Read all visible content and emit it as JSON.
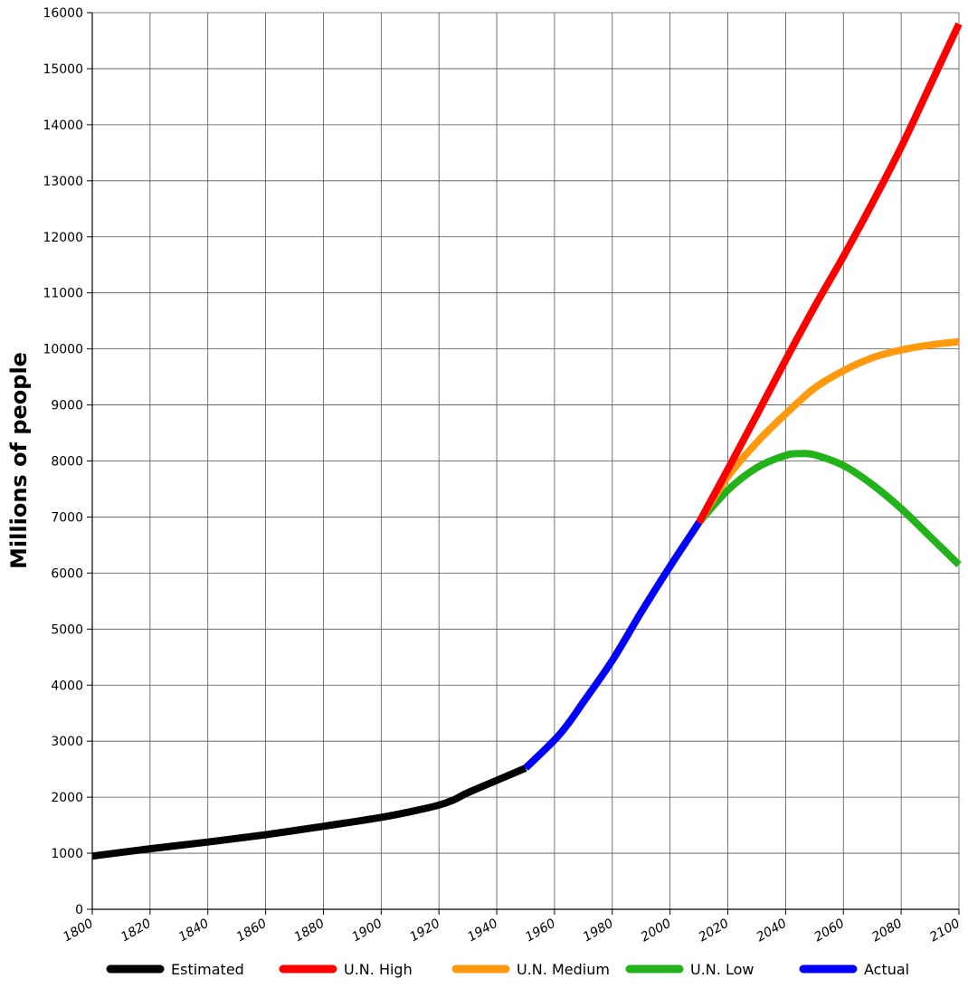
{
  "chart_data": {
    "type": "line",
    "title": "",
    "xlabel": "",
    "ylabel": "Millions of people",
    "xlim": [
      1800,
      2100
    ],
    "ylim": [
      0,
      16000
    ],
    "x_ticks": [
      "1800",
      "1820",
      "1840",
      "1860",
      "1880",
      "1900",
      "1920",
      "1940",
      "1960",
      "1980",
      "2000",
      "2020",
      "2040",
      "2060",
      "2080",
      "2100"
    ],
    "y_ticks": [
      "0",
      "1000",
      "2000",
      "3000",
      "4000",
      "5000",
      "6000",
      "7000",
      "8000",
      "9000",
      "10000",
      "11000",
      "12000",
      "13000",
      "14000",
      "15000",
      "16000"
    ],
    "grid": true,
    "legend_position": "bottom",
    "series": [
      {
        "name": "Estimated",
        "color": "#000000",
        "x": [
          1800,
          1820,
          1840,
          1860,
          1880,
          1900,
          1910,
          1920,
          1925,
          1930,
          1940,
          1950
        ],
        "values": [
          950,
          1080,
          1200,
          1330,
          1480,
          1640,
          1740,
          1860,
          1950,
          2080,
          2300,
          2520
        ]
      },
      {
        "name": "U.N. High",
        "color": "#ff0000",
        "x": [
          2010,
          2020,
          2030,
          2040,
          2050,
          2060,
          2070,
          2080,
          2090,
          2100
        ],
        "values": [
          6900,
          7850,
          8820,
          9800,
          10750,
          11650,
          12600,
          13600,
          14700,
          15800
        ]
      },
      {
        "name": "U.N. Medium",
        "color": "#ff9a0f",
        "x": [
          2010,
          2020,
          2030,
          2040,
          2050,
          2060,
          2070,
          2080,
          2090,
          2100
        ],
        "values": [
          6900,
          7720,
          8330,
          8840,
          9300,
          9610,
          9840,
          9980,
          10070,
          10130
        ]
      },
      {
        "name": "U.N. Low",
        "color": "#22b21a",
        "x": [
          2010,
          2020,
          2030,
          2040,
          2045,
          2050,
          2060,
          2070,
          2080,
          2090,
          2100
        ],
        "values": [
          6900,
          7480,
          7880,
          8100,
          8130,
          8110,
          7920,
          7580,
          7150,
          6650,
          6150
        ]
      },
      {
        "name": "Actual",
        "color": "#0000ff",
        "x": [
          1950,
          1960,
          1965,
          1970,
          1980,
          1990,
          2000,
          2010
        ],
        "values": [
          2520,
          3020,
          3330,
          3700,
          4440,
          5300,
          6120,
          6900
        ]
      }
    ]
  }
}
